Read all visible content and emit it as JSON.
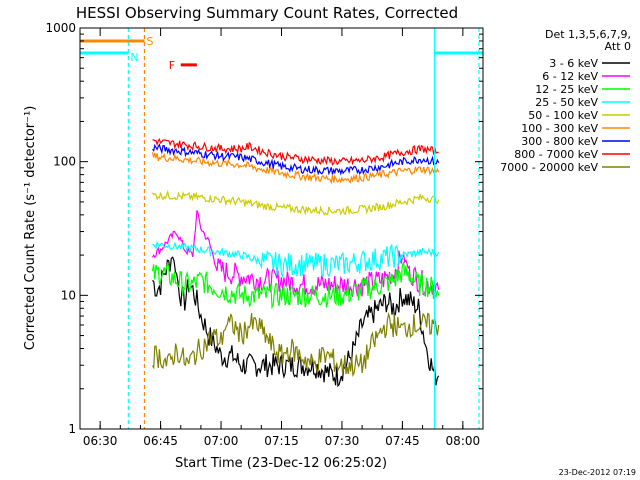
{
  "chart_data": {
    "type": "line",
    "title": "HESSI Observing Summary Count Rates, Corrected",
    "xlabel": "Start Time (23-Dec-12 06:25:02)",
    "ylabel": "Corrected Count Rate (s⁻¹ detector⁻¹)",
    "x_unit": "minutes after 06:25:02 UT",
    "xlim": [
      0,
      100
    ],
    "ylim": [
      1,
      1000
    ],
    "y_scale": "log",
    "grid": false,
    "x_ticks": [
      {
        "label": "06:30",
        "value": 5
      },
      {
        "label": "06:45",
        "value": 20
      },
      {
        "label": "07:00",
        "value": 35
      },
      {
        "label": "07:15",
        "value": 50
      },
      {
        "label": "07:30",
        "value": 65
      },
      {
        "label": "07:45",
        "value": 80
      },
      {
        "label": "08:00",
        "value": 95
      }
    ],
    "y_ticks": [
      {
        "label": "1",
        "value": 1
      },
      {
        "label": "10",
        "value": 10
      },
      {
        "label": "100",
        "value": 100
      },
      {
        "label": "1000",
        "value": 1000
      }
    ],
    "legend": {
      "position": "right",
      "header": [
        "Det 1,3,5,6,7,9,",
        "Att 0"
      ]
    },
    "series": [
      {
        "name": "3 - 6 keV",
        "color": "#000000",
        "x": [
          18,
          19,
          20,
          21,
          22,
          23,
          24,
          25,
          26,
          27,
          28,
          29,
          30,
          31,
          32,
          33,
          34,
          35,
          38,
          40,
          45,
          50,
          55,
          58,
          60,
          62,
          64,
          66,
          68,
          70,
          72,
          74,
          76,
          78,
          80,
          82,
          84,
          86,
          88,
          89
        ],
        "y": [
          13,
          11,
          12,
          15,
          17,
          20,
          14,
          10,
          9,
          12,
          11,
          9,
          7,
          6,
          5,
          4.5,
          4,
          3.5,
          3.5,
          3,
          3,
          3,
          3,
          3,
          2.8,
          2.6,
          2.5,
          3,
          4,
          6,
          7,
          8,
          9,
          8,
          10,
          9,
          8,
          4,
          2.5,
          2.5
        ]
      },
      {
        "name": "6 - 12 keV",
        "color": "#ff00ff",
        "x": [
          18,
          20,
          22,
          24,
          26,
          28,
          29,
          30,
          32,
          34,
          36,
          40,
          45,
          50,
          55,
          60,
          65,
          70,
          75,
          78,
          80,
          82,
          84,
          86,
          88,
          89
        ],
        "y": [
          20,
          22,
          26,
          30,
          22,
          20,
          42,
          32,
          25,
          16,
          15,
          14,
          13,
          13,
          12,
          12,
          12,
          12,
          13,
          15,
          20,
          15,
          13,
          12,
          12,
          11
        ]
      },
      {
        "name": "12 - 25 keV",
        "color": "#00ff00",
        "x": [
          18,
          20,
          22,
          24,
          26,
          28,
          30,
          32,
          35,
          40,
          45,
          50,
          55,
          60,
          65,
          70,
          75,
          78,
          80,
          82,
          84,
          86,
          88,
          89
        ],
        "y": [
          14,
          15,
          14,
          13,
          12,
          12,
          13,
          12,
          11,
          10,
          10,
          10,
          10,
          10,
          10,
          11,
          12,
          13,
          15,
          14,
          12,
          12,
          11,
          10
        ]
      },
      {
        "name": "25 - 50 keV",
        "color": "#00ffff",
        "x": [
          18,
          20,
          25,
          30,
          35,
          40,
          45,
          50,
          55,
          60,
          65,
          70,
          75,
          80,
          85,
          89
        ],
        "y": [
          24,
          24,
          23,
          22,
          21,
          20,
          18,
          17,
          17,
          17,
          17,
          18,
          19,
          20,
          21,
          21
        ]
      },
      {
        "name": "50 - 100 keV",
        "color": "#cccc00",
        "x": [
          18,
          20,
          25,
          30,
          35,
          40,
          45,
          50,
          55,
          60,
          65,
          70,
          75,
          80,
          85,
          89
        ],
        "y": [
          56,
          56,
          55,
          54,
          52,
          50,
          47,
          45,
          44,
          43,
          43,
          44,
          46,
          50,
          54,
          52
        ]
      },
      {
        "name": "100 - 300 keV",
        "color": "#ff8800",
        "x": [
          18,
          20,
          25,
          30,
          35,
          40,
          45,
          50,
          55,
          60,
          65,
          70,
          75,
          80,
          85,
          89
        ],
        "y": [
          110,
          108,
          105,
          100,
          97,
          95,
          88,
          82,
          78,
          75,
          74,
          76,
          80,
          85,
          88,
          84
        ]
      },
      {
        "name": "300 - 800 keV",
        "color": "#0000ff",
        "x": [
          18,
          20,
          25,
          30,
          35,
          40,
          45,
          50,
          55,
          60,
          65,
          70,
          75,
          80,
          85,
          89
        ],
        "y": [
          128,
          125,
          120,
          115,
          110,
          108,
          100,
          92,
          88,
          86,
          85,
          87,
          92,
          100,
          105,
          98
        ]
      },
      {
        "name": "800 - 7000 keV",
        "color": "#ff0000",
        "x": [
          18,
          20,
          25,
          30,
          35,
          40,
          42,
          45,
          50,
          55,
          60,
          65,
          70,
          75,
          80,
          85,
          89
        ],
        "y": [
          145,
          140,
          135,
          130,
          125,
          125,
          130,
          120,
          110,
          105,
          102,
          100,
          102,
          108,
          118,
          125,
          118
        ]
      },
      {
        "name": "7000 - 20000 keV",
        "color": "#808000",
        "x": [
          18,
          20,
          22,
          24,
          25,
          27,
          28,
          30,
          33,
          35,
          36,
          38,
          40,
          42,
          44,
          46,
          48,
          50,
          52,
          55,
          58,
          60,
          62,
          64,
          66,
          68,
          70,
          72,
          74,
          76,
          78,
          80,
          82,
          84,
          86,
          88,
          89
        ],
        "y": [
          3.5,
          3.5,
          3,
          4,
          3.5,
          3,
          3.5,
          4,
          5,
          4.5,
          6,
          6,
          5,
          6,
          6,
          5,
          4,
          3.5,
          4,
          3.5,
          3,
          3.5,
          3.5,
          3,
          3,
          3,
          3,
          4,
          5,
          6,
          6,
          5.5,
          6,
          6,
          6,
          6,
          6
        ]
      }
    ],
    "annotations": [
      {
        "label": "S",
        "color": "#ff8800",
        "x_start": 0,
        "x_end": 16,
        "y": 800
      },
      {
        "label": "N",
        "color": "#00ffff",
        "x_start": 0,
        "x_end": 12,
        "y": 650
      },
      {
        "label": "F",
        "color": "#ff0000",
        "x_start": 25,
        "x_end": 29,
        "y": 530
      },
      {
        "label": "",
        "color": "#00ffff",
        "x_start": 88,
        "x_end": 100,
        "y": 650
      }
    ],
    "vertical_markers": [
      {
        "x": 12,
        "color": "#00ffff",
        "style": "dashed"
      },
      {
        "x": 16,
        "color": "#ff8800",
        "style": "dashed"
      },
      {
        "x": 88,
        "color": "#00ffff",
        "style": "solid"
      },
      {
        "x": 99,
        "color": "#00ffff",
        "style": "dashed"
      }
    ]
  },
  "footer": {
    "timestamp": "23-Dec-2012 07:19"
  }
}
